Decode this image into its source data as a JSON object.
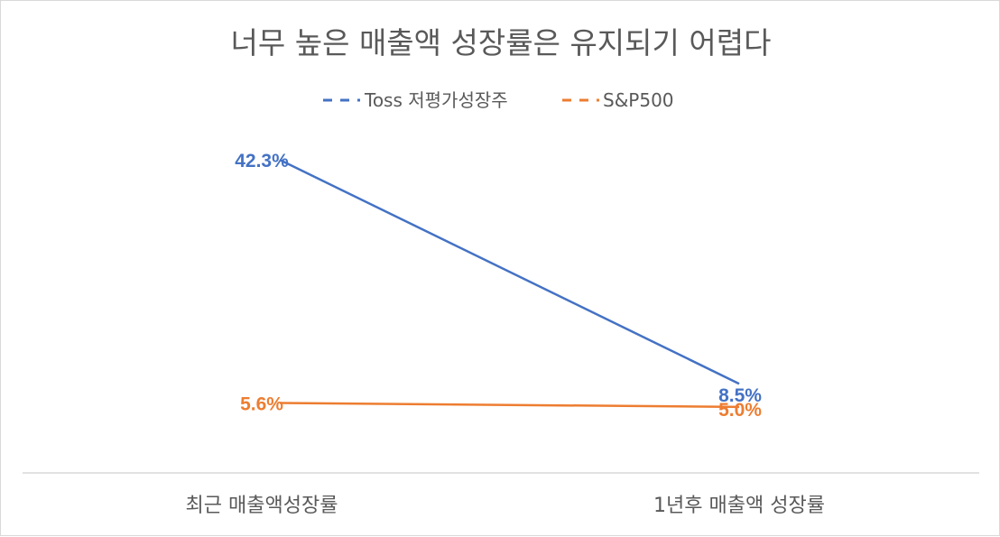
{
  "chart_data": {
    "type": "line",
    "title": "너무 높은 매출액 성장률은 유지되기 어렵다",
    "categories": [
      "최근 매출액성장률",
      "1년후 매출액 성장률"
    ],
    "series": [
      {
        "name": "Toss 저평가성장주",
        "values": [
          42.3,
          8.5
        ],
        "labels": [
          "42.3%",
          "8.5%"
        ],
        "color": "#4472c4",
        "dash": "dashed-legend"
      },
      {
        "name": "S&P500",
        "values": [
          5.6,
          5.0
        ],
        "labels": [
          "5.6%",
          "5.0%"
        ],
        "color": "#ed7d31",
        "dash": "dashed-legend"
      }
    ],
    "legend": "top",
    "grid": false
  }
}
